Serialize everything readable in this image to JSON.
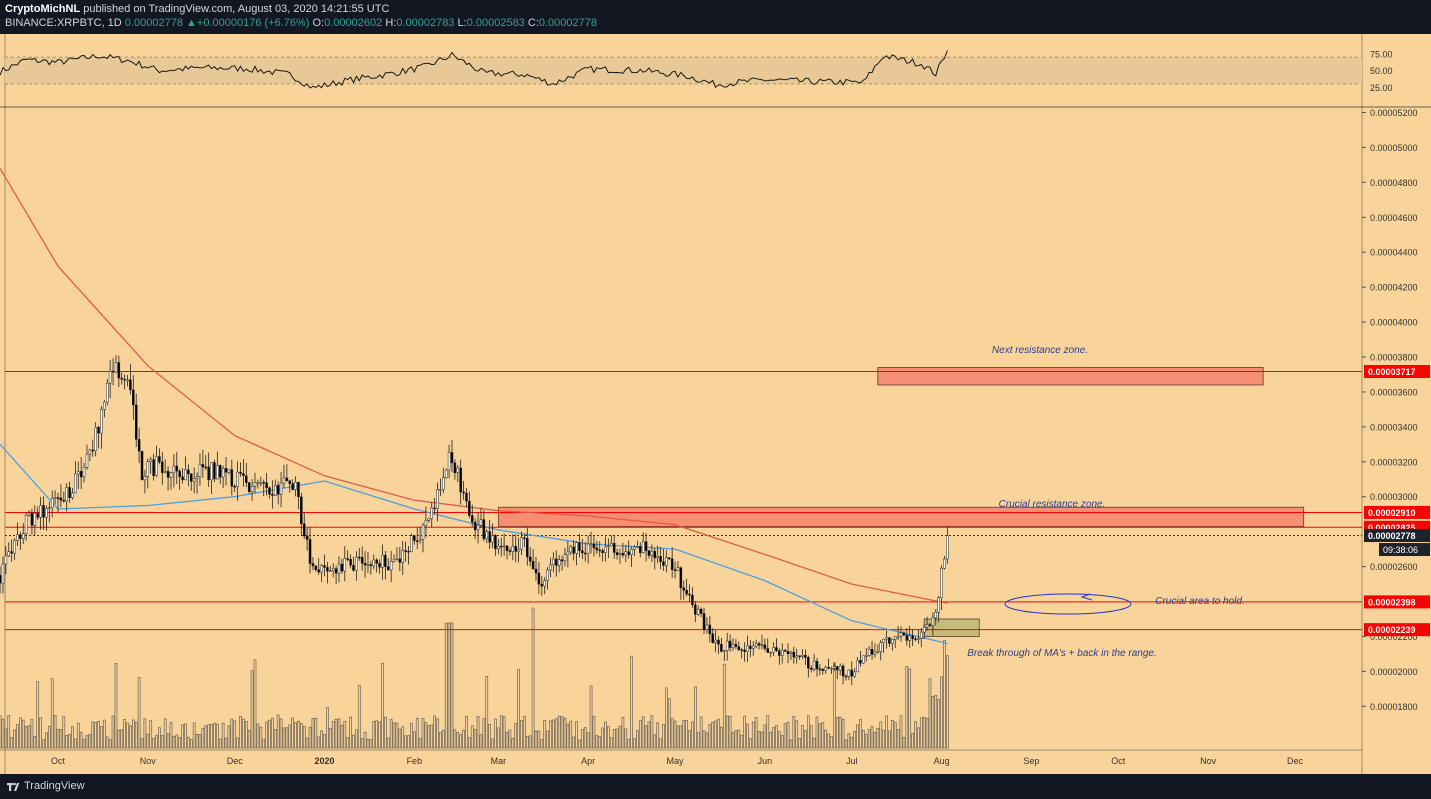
{
  "header": {
    "author": "CryptoMichNL",
    "published": "published on TradingView.com, August 03, 2020 14:21:55 UTC",
    "symbol": "BINANCE:XRPBTC, 1D",
    "symbol_price": "0.00002778",
    "change": "+0.00000176 (+6.76%)",
    "o_label": "O:",
    "o_value": "0.00002602",
    "h_label": "H:",
    "h_value": "0.00002783",
    "l_label": "L:",
    "l_value": "0.00002583",
    "c_label": "C:",
    "c_value": "0.00002778"
  },
  "footer": {
    "brand": "TradingView"
  },
  "colors": {
    "background": "#f8d49b",
    "up_candle": "#ffffff",
    "down_candle": "#000000",
    "ma200": "#e45a4a",
    "ma50": "#4e9ee0",
    "zone_fill": "#f6826a",
    "zone_border": "#c0392b",
    "resistance_line": "#ff0000",
    "annotation": "#2c3e91",
    "box_green": "#b5b36e"
  },
  "chart_data": {
    "type": "candlestick",
    "symbol": "BINANCE:XRPBTC",
    "timeframe": "1D",
    "x_ticks": [
      "Oct",
      "Nov",
      "Dec",
      "2020",
      "Feb",
      "Mar",
      "Apr",
      "May",
      "Jun",
      "Jul",
      "Aug",
      "Sep",
      "Oct",
      "Nov",
      "Dec"
    ],
    "y_ticks": [
      "0.00005200",
      "0.00005000",
      "0.00004800",
      "0.00004600",
      "0.00004400",
      "0.00004200",
      "0.00004000",
      "0.00003800",
      "0.00003600",
      "0.00003400",
      "0.00003200",
      "0.00003000",
      "0.00002600",
      "0.00002200",
      "0.00002000",
      "0.00001800"
    ],
    "ylim": [
      1.55e-05,
      5.22e-05
    ],
    "price_path": [
      [
        "2019-09-11",
        2.55e-05
      ],
      [
        "2019-09-20",
        2.85e-05
      ],
      [
        "2019-09-30",
        2.95e-05
      ],
      [
        "2019-10-08",
        3.1e-05
      ],
      [
        "2019-10-15",
        3.4e-05
      ],
      [
        "2019-10-20",
        3.75e-05
      ],
      [
        "2019-10-26",
        3.6e-05
      ],
      [
        "2019-10-30",
        3.15e-05
      ],
      [
        "2019-11-05",
        3.18e-05
      ],
      [
        "2019-11-15",
        3.12e-05
      ],
      [
        "2019-11-25",
        3.15e-05
      ],
      [
        "2019-12-05",
        3.08e-05
      ],
      [
        "2019-12-15",
        3.05e-05
      ],
      [
        "2019-12-22",
        3.06e-05
      ],
      [
        "2019-12-27",
        2.63e-05
      ],
      [
        "2020-01-05",
        2.58e-05
      ],
      [
        "2020-01-15",
        2.65e-05
      ],
      [
        "2020-01-25",
        2.62e-05
      ],
      [
        "2020-02-05",
        2.83e-05
      ],
      [
        "2020-02-14",
        3.25e-05
      ],
      [
        "2020-02-20",
        2.9e-05
      ],
      [
        "2020-03-01",
        2.7e-05
      ],
      [
        "2020-03-10",
        2.75e-05
      ],
      [
        "2020-03-15",
        2.5e-05
      ],
      [
        "2020-03-25",
        2.7e-05
      ],
      [
        "2020-04-05",
        2.72e-05
      ],
      [
        "2020-04-20",
        2.7e-05
      ],
      [
        "2020-04-30",
        2.62e-05
      ],
      [
        "2020-05-05",
        2.45e-05
      ],
      [
        "2020-05-15",
        2.15e-05
      ],
      [
        "2020-05-25",
        2.15e-05
      ],
      [
        "2020-06-05",
        2.1e-05
      ],
      [
        "2020-06-20",
        2.03e-05
      ],
      [
        "2020-07-01",
        1.98e-05
      ],
      [
        "2020-07-05",
        2.1e-05
      ],
      [
        "2020-07-15",
        2.18e-05
      ],
      [
        "2020-07-25",
        2.22e-05
      ],
      [
        "2020-07-30",
        2.32e-05
      ],
      [
        "2020-08-03",
        2.78e-05
      ]
    ],
    "ma200_path": [
      [
        "2019-09-11",
        4.88e-05
      ],
      [
        "2019-10-01",
        4.32e-05
      ],
      [
        "2019-11-01",
        3.75e-05
      ],
      [
        "2019-12-01",
        3.35e-05
      ],
      [
        "2020-01-01",
        3.12e-05
      ],
      [
        "2020-02-01",
        2.98e-05
      ],
      [
        "2020-03-01",
        2.92e-05
      ],
      [
        "2020-04-01",
        2.89e-05
      ],
      [
        "2020-05-01",
        2.84e-05
      ],
      [
        "2020-06-01",
        2.67e-05
      ],
      [
        "2020-07-01",
        2.5e-05
      ],
      [
        "2020-08-03",
        2.39e-05
      ]
    ],
    "ma50_path": [
      [
        "2019-09-11",
        3.3e-05
      ],
      [
        "2019-10-01",
        2.93e-05
      ],
      [
        "2019-11-01",
        2.95e-05
      ],
      [
        "2019-12-01",
        3e-05
      ],
      [
        "2020-01-01",
        3.09e-05
      ],
      [
        "2020-02-01",
        2.93e-05
      ],
      [
        "2020-03-01",
        2.81e-05
      ],
      [
        "2020-04-01",
        2.73e-05
      ],
      [
        "2020-05-01",
        2.7e-05
      ],
      [
        "2020-06-01",
        2.52e-05
      ],
      [
        "2020-07-01",
        2.29e-05
      ],
      [
        "2020-08-03",
        2.16e-05
      ]
    ],
    "rsi": {
      "ticks": [
        "75.00",
        "50.00",
        "25.00"
      ],
      "range": [
        0,
        100
      ],
      "band": [
        30,
        70
      ],
      "path": [
        [
          "2019-09-11",
          48
        ],
        [
          "2019-09-20",
          66
        ],
        [
          "2019-10-01",
          62
        ],
        [
          "2019-10-15",
          72
        ],
        [
          "2019-10-25",
          65
        ],
        [
          "2019-11-05",
          50
        ],
        [
          "2019-11-20",
          54
        ],
        [
          "2019-12-05",
          53
        ],
        [
          "2019-12-20",
          44
        ],
        [
          "2019-12-28",
          24
        ],
        [
          "2020-01-10",
          36
        ],
        [
          "2020-01-25",
          46
        ],
        [
          "2020-02-05",
          56
        ],
        [
          "2020-02-14",
          73
        ],
        [
          "2020-02-25",
          46
        ],
        [
          "2020-03-10",
          44
        ],
        [
          "2020-03-20",
          30
        ],
        [
          "2020-04-01",
          52
        ],
        [
          "2020-04-20",
          50
        ],
        [
          "2020-05-05",
          42
        ],
        [
          "2020-05-15",
          29
        ],
        [
          "2020-06-01",
          36
        ],
        [
          "2020-06-20",
          33
        ],
        [
          "2020-07-05",
          32
        ],
        [
          "2020-07-12",
          72
        ],
        [
          "2020-07-25",
          60
        ],
        [
          "2020-07-30",
          45
        ],
        [
          "2020-08-03",
          80
        ]
      ]
    },
    "levels": [
      {
        "price": 3.717e-05,
        "label": "0.00003717"
      },
      {
        "price": 2.91e-05,
        "label": "0.00002910"
      },
      {
        "price": 2.825e-05,
        "label": "0.00002825"
      },
      {
        "price": 2.398e-05,
        "label": "0.00002398"
      },
      {
        "price": 2.239e-05,
        "label": "0.00002239"
      }
    ],
    "current_price": {
      "label": "0.00002778",
      "countdown": "09:38:06"
    },
    "zones": [
      {
        "name": "next-resistance",
        "date_from": "2020-07-10",
        "date_to": "2020-11-20",
        "price_from": 3.64e-05,
        "price_to": 3.74e-05
      },
      {
        "name": "crucial-resistance",
        "date_from": "2020-03-01",
        "date_to": "2020-12-04",
        "price_from": 2.83e-05,
        "price_to": 2.94e-05
      },
      {
        "name": "breakout-box",
        "date_from": "2020-07-26",
        "date_to": "2020-08-14",
        "price_from": 2.2e-05,
        "price_to": 2.3e-05
      }
    ],
    "annotations": [
      {
        "text": "Next resistance zone."
      },
      {
        "text": "Crucial resistance zone."
      },
      {
        "text": "Crucial area to hold."
      },
      {
        "text": "Break through of  MA's + back in the range."
      }
    ]
  }
}
